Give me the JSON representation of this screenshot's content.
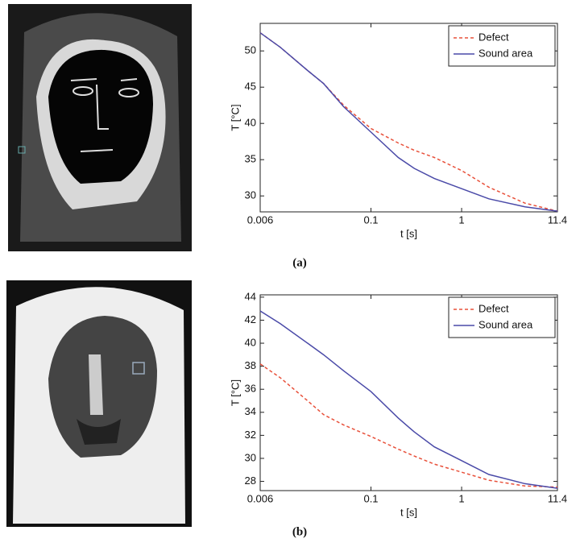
{
  "chart_data": [
    {
      "type": "line",
      "caption": "(a)",
      "x_label": "t [s]",
      "y_label": "T [°C]",
      "xscale": "log",
      "x": [
        0.006,
        0.01,
        0.02,
        0.03,
        0.05,
        0.1,
        0.2,
        0.3,
        0.5,
        1,
        2,
        5,
        11.4
      ],
      "series": [
        {
          "name": "Defect",
          "color": "#e8503a",
          "style": "dashed",
          "values": [
            52.5,
            50.5,
            47.3,
            45.5,
            42.5,
            39.3,
            37.3,
            36.3,
            35.3,
            33.5,
            31.2,
            29.0,
            27.9
          ]
        },
        {
          "name": "Sound area",
          "color": "#4a4aa8",
          "style": "solid",
          "values": [
            52.5,
            50.5,
            47.3,
            45.5,
            42.3,
            38.8,
            35.3,
            33.8,
            32.4,
            31.0,
            29.6,
            28.5,
            27.9
          ]
        }
      ],
      "xlim": [
        0.006,
        11.4
      ],
      "xticks": [
        0.006,
        0.1,
        1,
        11.4
      ],
      "ylim": [
        27.8,
        53.8
      ],
      "yticks": [
        30,
        35,
        40,
        45,
        50
      ],
      "legend": "upper right",
      "grid": false
    },
    {
      "type": "line",
      "caption": "(b)",
      "x_label": "t [s]",
      "y_label": "T [°C]",
      "xscale": "log",
      "x": [
        0.006,
        0.01,
        0.02,
        0.03,
        0.05,
        0.1,
        0.2,
        0.3,
        0.5,
        1,
        2,
        5,
        11.4
      ],
      "series": [
        {
          "name": "Defect",
          "color": "#e8503a",
          "style": "dashed",
          "values": [
            38.2,
            37.0,
            35.0,
            33.8,
            32.9,
            31.9,
            30.8,
            30.2,
            29.5,
            28.8,
            28.1,
            27.6,
            27.5
          ]
        },
        {
          "name": "Sound area",
          "color": "#4a4aa8",
          "style": "solid",
          "values": [
            42.8,
            41.7,
            40.0,
            39.0,
            37.6,
            35.8,
            33.5,
            32.3,
            31.0,
            29.8,
            28.6,
            27.8,
            27.4
          ]
        }
      ],
      "xlim": [
        0.006,
        11.4
      ],
      "xticks": [
        0.006,
        0.1,
        1,
        11.4
      ],
      "ylim": [
        27.2,
        44.2
      ],
      "yticks": [
        28,
        30,
        32,
        34,
        36,
        38,
        40,
        42,
        44
      ],
      "legend": "upper right",
      "grid": false
    }
  ]
}
